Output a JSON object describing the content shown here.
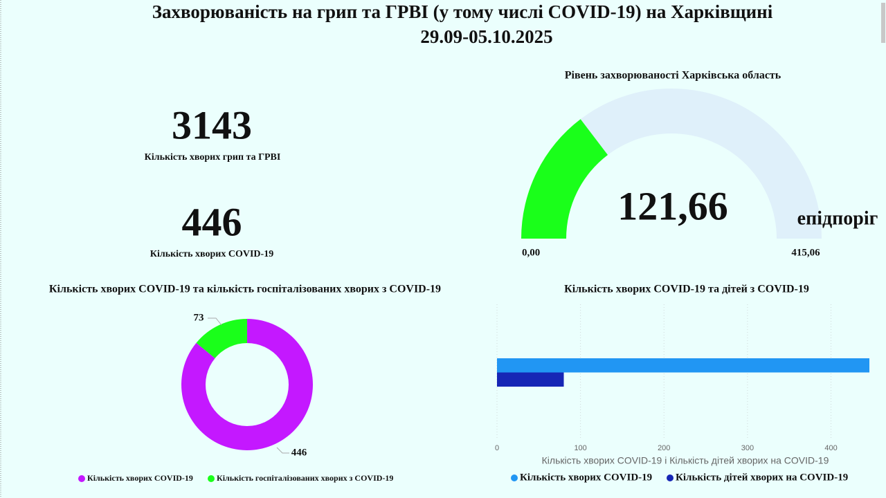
{
  "header": {
    "title": "Захворюваність на грип та ГРВІ (у тому числі COVID-19) на Харківщині",
    "period": "29.09-05.10.2025"
  },
  "cards": [
    {
      "value": 3143,
      "label": "Кількість хворих грип та ГРВІ"
    },
    {
      "value": 446,
      "label": "Кількість хворих COVID-19"
    }
  ],
  "chart_data": [
    {
      "type": "gauge",
      "title": "Рівень захворюваності Харківська область",
      "value": 121.66,
      "value_label": "121,66",
      "range": [
        0,
        415.06
      ],
      "ticks": [
        {
          "value": 0,
          "label": "0,00"
        },
        {
          "value": 415.06,
          "label": "415,06"
        }
      ],
      "target_label": "епідпоріг",
      "color": "#1aff1a",
      "track_color": "#dff0fa"
    },
    {
      "type": "donut",
      "title": "Кількість хворих COVID-19 та кількість госпіталізованих хворих з COVID-19",
      "categories": [
        "Кількість хворих COVID-19",
        "Кількість госпіталізованих хворих з COVID-19"
      ],
      "values": [
        446,
        73
      ],
      "colors": [
        "#c418ff",
        "#1aff1a"
      ]
    },
    {
      "type": "bar",
      "orientation": "horizontal",
      "title": "Кількість хворих COVID-19 та дітей з COVID-19",
      "series": [
        {
          "name": "Кількість хворих COVID-19",
          "color": "#2196f3",
          "values": [
            446
          ]
        },
        {
          "name": "Кількість дітей хворих на COVID-19",
          "color": "#1626b5",
          "values": [
            80
          ]
        }
      ],
      "xlim": [
        0,
        446
      ],
      "xticks": [
        0,
        100,
        200,
        300,
        400
      ],
      "xlabel": "Кількість хворих COVID-19 і Кількість дітей хворих на COVID-19",
      "grid": true
    }
  ]
}
